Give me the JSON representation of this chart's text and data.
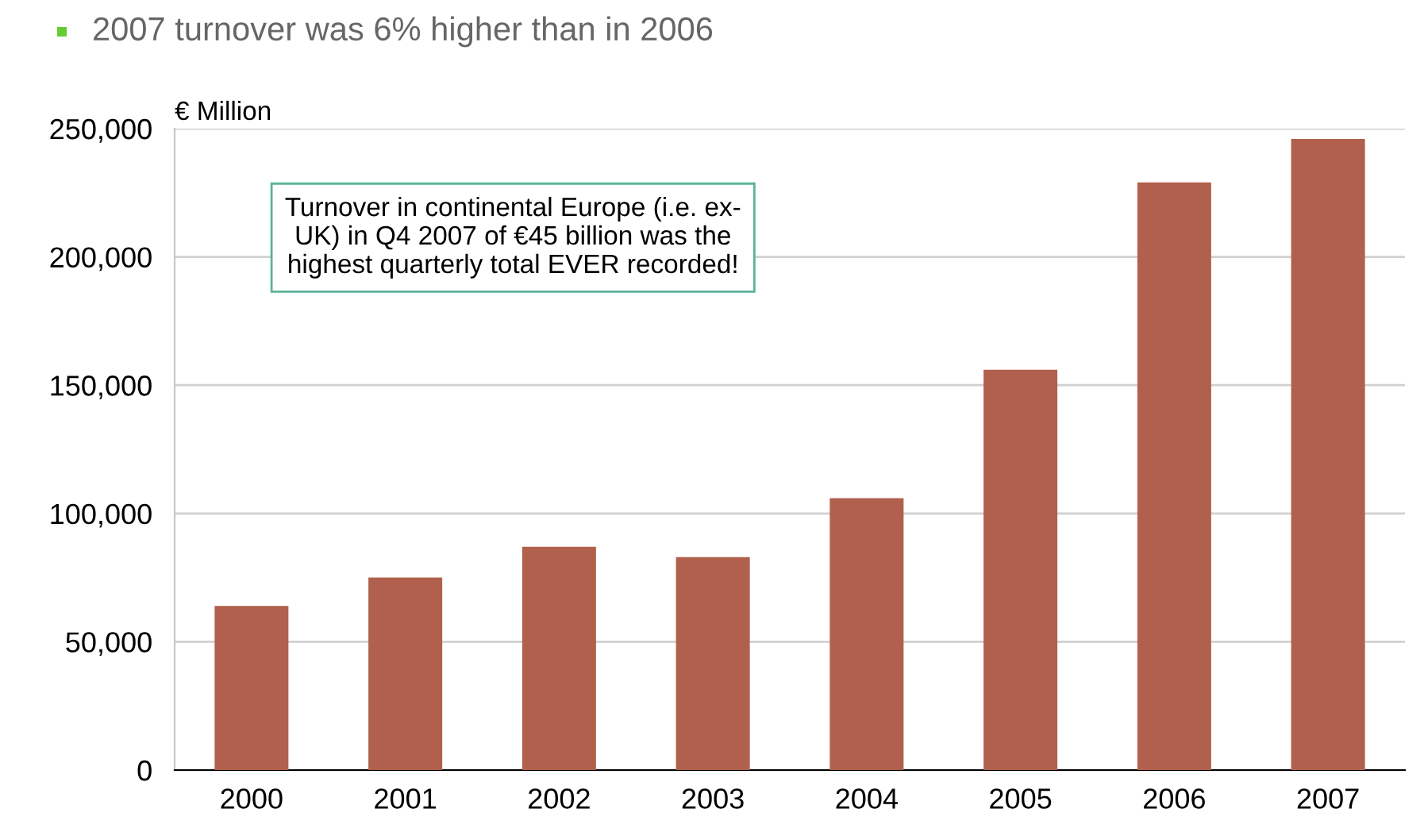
{
  "chart_data": {
    "type": "bar",
    "title": "2007 turnover was 6% higher than in 2006",
    "ylabel": "€ Million",
    "categories": [
      "2000",
      "2001",
      "2002",
      "2003",
      "2004",
      "2005",
      "2006",
      "2007"
    ],
    "values": [
      64000,
      75000,
      87000,
      83000,
      106000,
      156000,
      229000,
      246000
    ],
    "color": "#b0604c",
    "ylim": [
      0,
      250000
    ],
    "yticks": [
      {
        "value": 0,
        "label": "0"
      },
      {
        "value": 50000,
        "label": "50,000"
      },
      {
        "value": 100000,
        "label": "100,000"
      },
      {
        "value": 150000,
        "label": "150,000"
      },
      {
        "value": 200000,
        "label": "200,000"
      },
      {
        "value": 250000,
        "label": "250,000"
      }
    ],
    "grid": "y",
    "annotations": [
      "Turnover in continental Europe (i.e. ex-\nUK) in Q4 2007 of €45 billion was the\nhighest quarterly total EVER recorded!"
    ]
  }
}
